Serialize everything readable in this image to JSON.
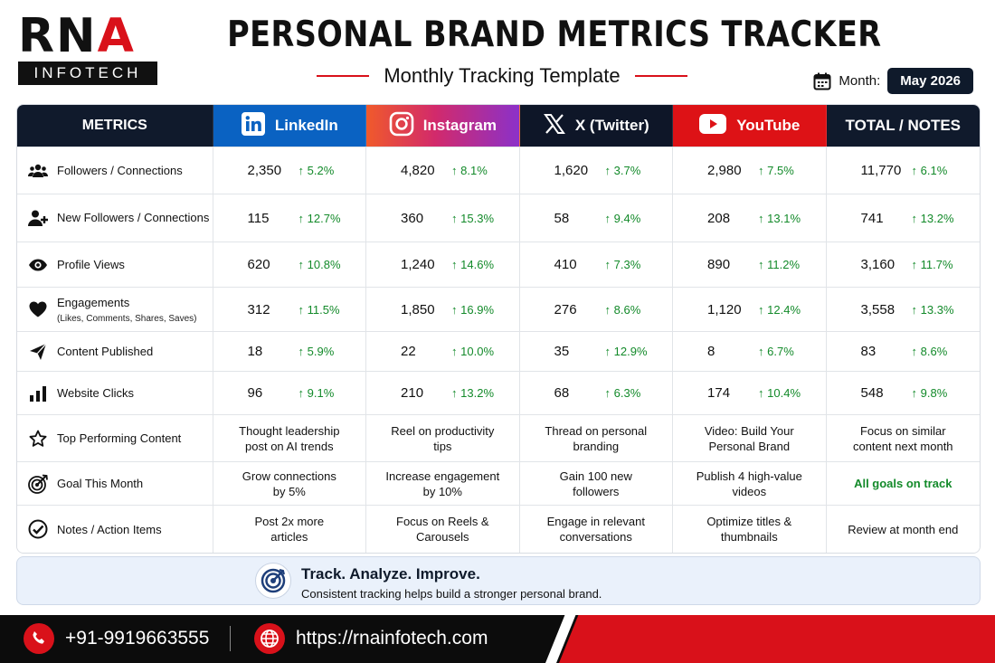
{
  "brand": {
    "logo_top_black": "RN",
    "logo_top_red": "A",
    "logo_bottom": "INFOTECH"
  },
  "header": {
    "title": "PERSONAL BRAND METRICS TRACKER",
    "subtitle": "Monthly Tracking Template",
    "month_label": "Month:",
    "month_value": "May 2026"
  },
  "table": {
    "columns": {
      "metrics": "METRICS",
      "linkedin": "LinkedIn",
      "instagram": "Instagram",
      "x": "X (Twitter)",
      "youtube": "YouTube",
      "total": "TOTAL / NOTES"
    },
    "numeric_rows": [
      {
        "label": "Followers / Connections",
        "sub": "",
        "icon": "users-icon",
        "values": [
          [
            "2,350",
            "↑ 5.2%"
          ],
          [
            "4,820",
            "↑ 8.1%"
          ],
          [
            "1,620",
            "↑ 3.7%"
          ],
          [
            "2,980",
            "↑ 7.5%"
          ],
          [
            "11,770",
            "↑ 6.1%"
          ]
        ]
      },
      {
        "label": "New Followers / Connections",
        "sub": "",
        "icon": "add-user-icon",
        "values": [
          [
            "115",
            "↑ 12.7%"
          ],
          [
            "360",
            "↑ 15.3%"
          ],
          [
            "58",
            "↑ 9.4%"
          ],
          [
            "208",
            "↑ 13.1%"
          ],
          [
            "741",
            "↑ 13.2%"
          ]
        ]
      },
      {
        "label": "Profile Views",
        "sub": "",
        "icon": "eye-icon",
        "values": [
          [
            "620",
            "↑ 10.8%"
          ],
          [
            "1,240",
            "↑ 14.6%"
          ],
          [
            "410",
            "↑ 7.3%"
          ],
          [
            "890",
            "↑ 11.2%"
          ],
          [
            "3,160",
            "↑ 11.7%"
          ]
        ]
      },
      {
        "label": "Engagements",
        "sub": "(Likes, Comments, Shares, Saves)",
        "icon": "heart-icon",
        "values": [
          [
            "312",
            "↑ 11.5%"
          ],
          [
            "1,850",
            "↑ 16.9%"
          ],
          [
            "276",
            "↑ 8.6%"
          ],
          [
            "1,120",
            "↑ 12.4%"
          ],
          [
            "3,558",
            "↑ 13.3%"
          ]
        ]
      },
      {
        "label": "Content Published",
        "sub": "",
        "icon": "paper-plane-icon",
        "values": [
          [
            "18",
            "↑ 5.9%"
          ],
          [
            "22",
            "↑ 10.0%"
          ],
          [
            "35",
            "↑ 12.9%"
          ],
          [
            "8",
            "↑ 6.7%"
          ],
          [
            "83",
            "↑ 8.6%"
          ]
        ]
      },
      {
        "label": "Website Clicks",
        "sub": "",
        "icon": "bar-chart-icon",
        "values": [
          [
            "96",
            "↑ 9.1%"
          ],
          [
            "210",
            "↑ 13.2%"
          ],
          [
            "68",
            "↑ 6.3%"
          ],
          [
            "174",
            "↑ 10.4%"
          ],
          [
            "548",
            "↑ 9.8%"
          ]
        ]
      }
    ],
    "text_rows": [
      {
        "label": "Top Performing Content",
        "icon": "star-icon",
        "values": [
          [
            "Thought leadership",
            "post on AI trends"
          ],
          [
            "Reel on productivity",
            "tips"
          ],
          [
            "Thread on personal",
            "branding"
          ],
          [
            "Video: Build Your",
            "Personal Brand"
          ],
          [
            "Focus on similar",
            "content next month"
          ]
        ]
      },
      {
        "label": "Goal This Month",
        "icon": "target-icon",
        "values": [
          [
            "Grow connections",
            "by 5%"
          ],
          [
            "Increase engagement",
            "by 10%"
          ],
          [
            "Gain 100 new",
            "followers"
          ],
          [
            "Publish 4 high-value",
            "videos"
          ],
          [
            "All goals on track",
            ""
          ]
        ]
      },
      {
        "label": "Notes / Action Items",
        "icon": "check-circle-icon",
        "values": [
          [
            "Post 2x more",
            "articles"
          ],
          [
            "Focus on Reels &",
            "Carousels"
          ],
          [
            "Engage in relevant",
            "conversations"
          ],
          [
            "Optimize titles &",
            "thumbnails"
          ],
          [
            "Review at month end",
            ""
          ]
        ]
      }
    ]
  },
  "banner": {
    "title": "Track. Analyze. Improve.",
    "text": "Consistent tracking helps build a stronger personal brand."
  },
  "footer": {
    "phone": "+91-9919663555",
    "website": "https://rnainfotech.com"
  },
  "colors": {
    "red": "#d9111a",
    "navy": "#101a2c",
    "linkedin": "#0a62c2",
    "youtube": "#dd1216",
    "positive": "#138a2a"
  }
}
